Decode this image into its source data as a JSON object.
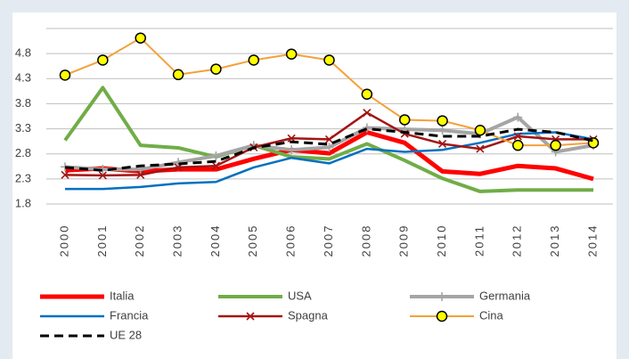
{
  "chart_data": {
    "type": "line",
    "categories": [
      "2000",
      "2001",
      "2002",
      "2003",
      "2004",
      "2005",
      "2006",
      "2007",
      "2008",
      "2009",
      "2010",
      "2011",
      "2012",
      "2013",
      "2014"
    ],
    "ylim": [
      1.8,
      5.3
    ],
    "yticks": [
      1.8,
      2.3,
      2.8,
      3.3,
      3.8,
      4.3,
      4.8
    ],
    "grid": true,
    "series": [
      {
        "name": "Italia",
        "color": "#ff0000",
        "width": 5,
        "values": [
          2.47,
          2.51,
          2.45,
          2.49,
          2.49,
          2.7,
          2.88,
          2.81,
          3.23,
          3.02,
          2.45,
          2.4,
          2.56,
          2.51,
          2.3
        ]
      },
      {
        "name": "USA",
        "color": "#70ad47",
        "width": 4,
        "values": [
          3.07,
          4.12,
          2.97,
          2.92,
          2.74,
          2.97,
          2.74,
          2.7,
          3.0,
          2.67,
          2.31,
          2.05,
          2.08,
          2.08,
          2.08
        ]
      },
      {
        "name": "Germania",
        "color": "#a5a5a5",
        "width": 4,
        "marker": "plus",
        "values": [
          2.54,
          2.49,
          2.49,
          2.63,
          2.76,
          2.97,
          2.88,
          2.93,
          3.32,
          3.29,
          3.27,
          3.2,
          3.53,
          2.84,
          2.97
        ]
      },
      {
        "name": "Francia",
        "color": "#0070c0",
        "width": 2.5,
        "values": [
          2.1,
          2.1,
          2.14,
          2.21,
          2.24,
          2.53,
          2.72,
          2.61,
          2.9,
          2.84,
          2.88,
          3.02,
          3.2,
          3.23,
          3.09
        ]
      },
      {
        "name": "Spagna",
        "color": "#a31515",
        "width": 2.5,
        "marker": "x",
        "values": [
          2.38,
          2.37,
          2.38,
          2.53,
          2.56,
          2.93,
          3.11,
          3.09,
          3.62,
          3.2,
          3.0,
          2.9,
          3.15,
          3.09,
          3.09
        ]
      },
      {
        "name": "Cina",
        "color": "#f4a13a",
        "width": 2,
        "marker": "circle",
        "marker_fill": "#ffff00",
        "values": [
          4.37,
          4.67,
          5.11,
          4.38,
          4.49,
          4.67,
          4.79,
          4.67,
          3.99,
          3.48,
          3.46,
          3.27,
          2.97,
          2.97,
          3.02
        ]
      },
      {
        "name": "UE 28",
        "color": "#000000",
        "width": 3,
        "dash": true,
        "values": [
          2.53,
          2.47,
          2.56,
          2.6,
          2.65,
          2.92,
          3.04,
          2.99,
          3.3,
          3.23,
          3.15,
          3.15,
          3.29,
          3.23,
          3.06
        ]
      }
    ]
  }
}
